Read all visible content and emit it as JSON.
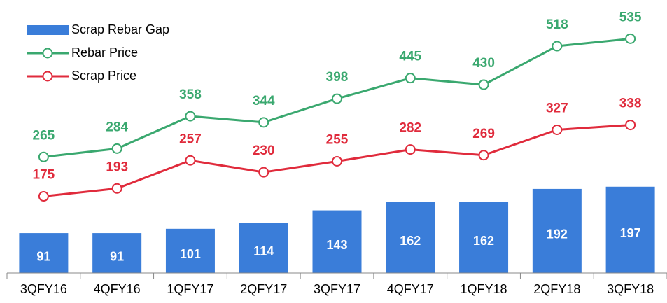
{
  "chart_data": {
    "type": "bar-line",
    "categories": [
      "3QFY16",
      "4QFY16",
      "1QFY17",
      "2QFY17",
      "3QFY17",
      "4QFY17",
      "1QFY18",
      "2QFY18",
      "3QFY18"
    ],
    "series": [
      {
        "name": "Scrap Rebar Gap",
        "type": "bar",
        "color": "#3a7dd9",
        "values": [
          91,
          91,
          101,
          114,
          143,
          162,
          162,
          192,
          197
        ]
      },
      {
        "name": "Rebar Price",
        "type": "line",
        "color": "#3aa86f",
        "values": [
          265,
          284,
          358,
          344,
          398,
          445,
          430,
          518,
          535
        ]
      },
      {
        "name": "Scrap Price",
        "type": "line",
        "color": "#e02b3c",
        "values": [
          175,
          193,
          257,
          230,
          255,
          282,
          269,
          327,
          338
        ]
      }
    ],
    "ylim": [
      0,
      550
    ],
    "legend": "upper left"
  }
}
